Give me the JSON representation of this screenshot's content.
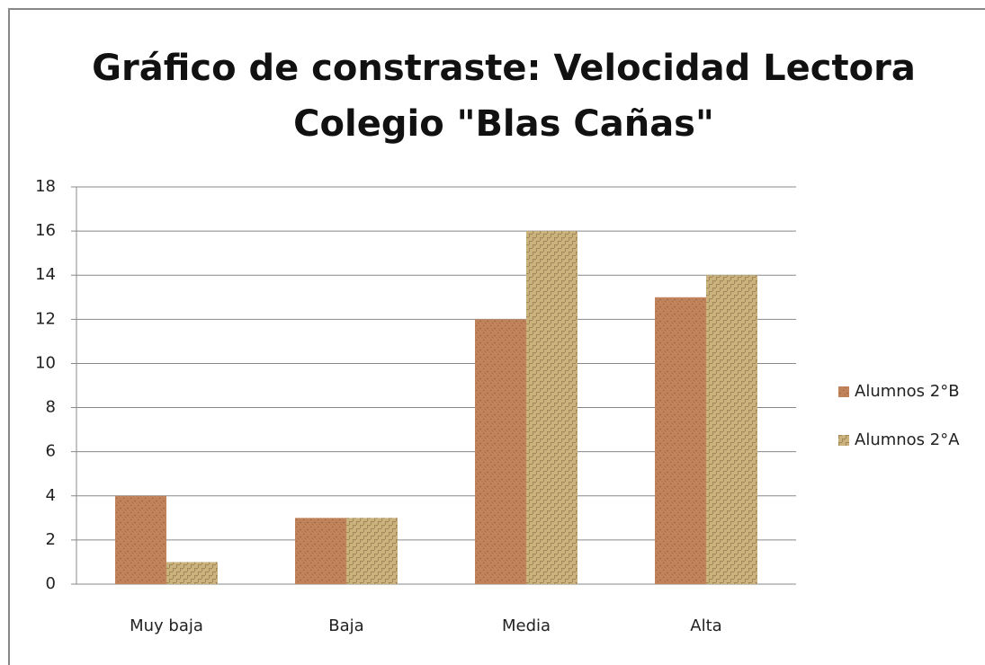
{
  "chart_data": {
    "type": "bar",
    "title": [
      "Gráfico de constraste: Velocidad Lectora",
      "Colegio \"Blas Cañas\""
    ],
    "categories": [
      "Muy baja",
      "Baja",
      "Media",
      "Alta"
    ],
    "series": [
      {
        "name": "Alumnos 2°B",
        "color": "#c0825a",
        "values": [
          4,
          3,
          12,
          13
        ]
      },
      {
        "name": "Alumnos 2°A",
        "color": "#c9b27c",
        "values": [
          1,
          3,
          16,
          14
        ]
      }
    ],
    "ylim": [
      0,
      18
    ],
    "yticks": [
      0,
      2,
      4,
      6,
      8,
      10,
      12,
      14,
      16,
      18
    ],
    "grid": true,
    "legend": "right"
  }
}
